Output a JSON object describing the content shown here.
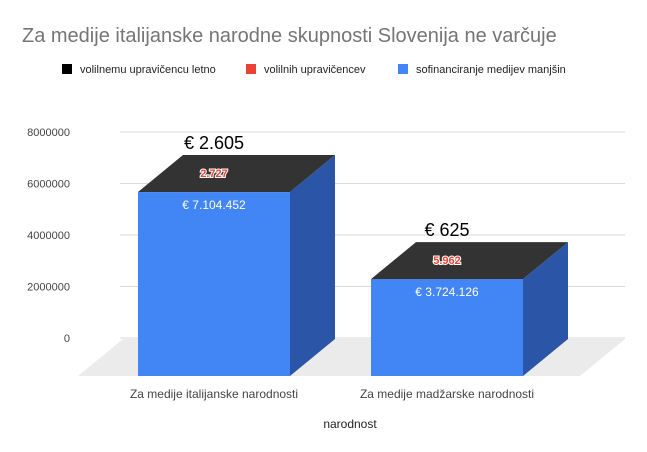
{
  "chart_data": {
    "type": "bar",
    "title": "Za medije italijanske narodne skupnosti Slovenija ne varčuje",
    "xlabel": "narodnost",
    "ylabel": "",
    "ylim": [
      0,
      8000000
    ],
    "yticks": [
      "0",
      "2000000",
      "4000000",
      "6000000",
      "8000000"
    ],
    "grid": true,
    "legend_position": "top",
    "categories": [
      "Za medije italijanske narodnosti",
      "Za medije madžarske narodnosti"
    ],
    "series": [
      {
        "name": "volilnemu upravičencu letno",
        "color": "#000000",
        "values": [
          2605,
          625
        ],
        "labels": [
          "€ 2.605",
          "€ 625"
        ]
      },
      {
        "name": "volilnih upravičencev",
        "color": "#ea4335",
        "values": [
          2727,
          5962
        ],
        "labels": [
          "2.727",
          "5.962"
        ]
      },
      {
        "name": "sofinanciranje medijev manjšin",
        "color": "#4285f4",
        "values": [
          7104452,
          3724126
        ],
        "labels": [
          "€ 7.104.452",
          "€ 3.724.126"
        ]
      }
    ]
  }
}
